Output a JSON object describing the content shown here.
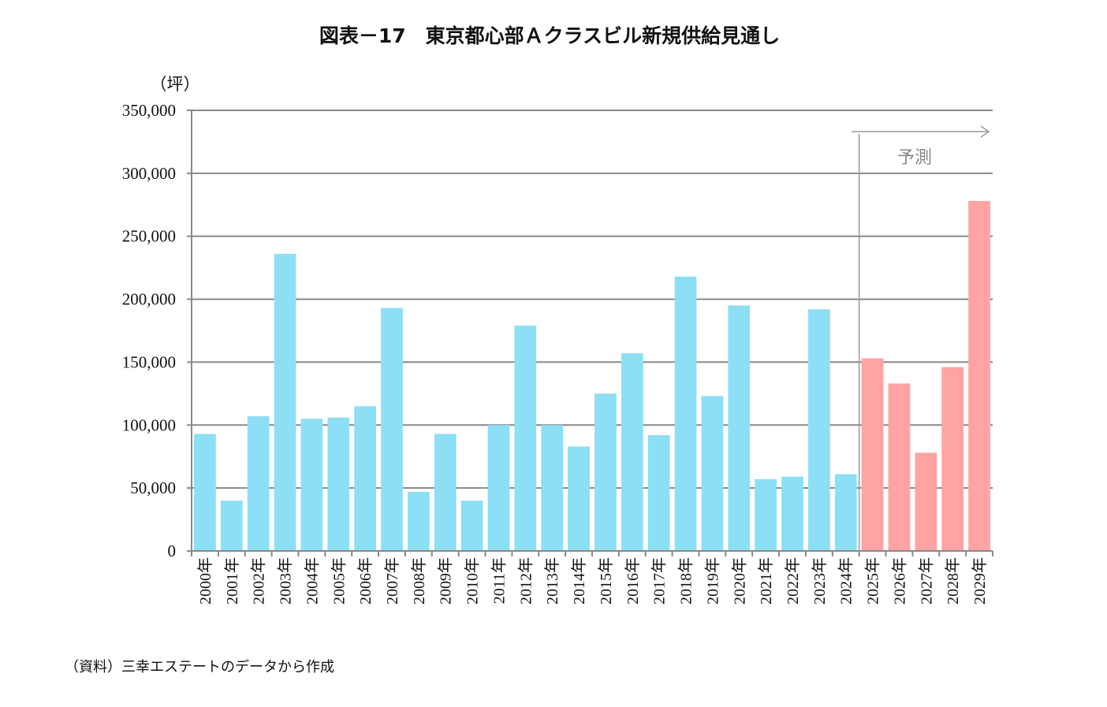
{
  "chart_data": {
    "type": "bar",
    "title": "図表－17　東京都心部Ａクラスビル新規供給見通し",
    "ylabel": "（坪）",
    "xlabel": "",
    "ylim": [
      0,
      350000
    ],
    "yticks": [
      0,
      50000,
      100000,
      150000,
      200000,
      250000,
      300000,
      350000
    ],
    "ytick_labels": [
      "0",
      "50,000",
      "100,000",
      "150,000",
      "200,000",
      "250,000",
      "300,000",
      "350,000"
    ],
    "grid": true,
    "categories": [
      "2000年",
      "2001年",
      "2002年",
      "2003年",
      "2004年",
      "2005年",
      "2006年",
      "2007年",
      "2008年",
      "2009年",
      "2010年",
      "2011年",
      "2012年",
      "2013年",
      "2014年",
      "2015年",
      "2016年",
      "2017年",
      "2018年",
      "2019年",
      "2020年",
      "2021年",
      "2022年",
      "2023年",
      "2024年",
      "2025年",
      "2026年",
      "2027年",
      "2028年",
      "2029年"
    ],
    "values": [
      93000,
      40000,
      107000,
      236000,
      105000,
      106000,
      115000,
      193000,
      47000,
      93000,
      40000,
      100000,
      179000,
      100000,
      83000,
      125000,
      157000,
      92000,
      218000,
      123000,
      195000,
      57000,
      59000,
      192000,
      61000,
      153000,
      133000,
      78000,
      146000,
      278000
    ],
    "colors": {
      "actual": "#8ddff5",
      "forecast": "#ffa3a3"
    },
    "forecast_start_index": 25,
    "annotation": "予測"
  },
  "source": "（資料）三幸エステートのデータから作成"
}
